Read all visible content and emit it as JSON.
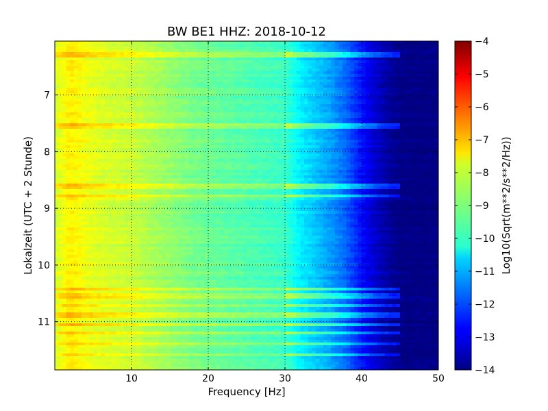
{
  "chart_data": {
    "type": "heatmap",
    "title": "BW BE1 HHZ: 2018-10-12",
    "xlabel": "Frequency [Hz]",
    "ylabel": "Lokalzeit (UTC + 2 Stunde)",
    "xlim": [
      0,
      50
    ],
    "ylim": [
      11.85,
      6.05
    ],
    "x_ticks": [
      10,
      20,
      30,
      40,
      50
    ],
    "y_ticks": [
      7,
      8,
      9,
      10,
      11
    ],
    "grid": true,
    "colormap": "jet",
    "colorbar": {
      "label": "Log10(Sqrt(m**2/s**2/Hz))",
      "min": -14,
      "max": -4,
      "ticks": [
        -4,
        -5,
        -6,
        -7,
        -8,
        -9,
        -10,
        -11,
        -12,
        -13,
        -14
      ]
    },
    "spectrum_profile": {
      "frequency_hz": [
        0,
        2,
        4,
        6,
        8,
        10,
        12,
        14,
        16,
        18,
        20,
        22,
        24,
        26,
        28,
        30,
        31,
        32,
        33,
        34,
        35,
        36,
        37,
        38,
        39,
        40,
        41,
        42,
        43,
        44,
        45,
        46,
        50
      ],
      "level": [
        -8.2,
        -7.6,
        -7.9,
        -8.1,
        -8.2,
        -8.3,
        -8.5,
        -8.7,
        -8.9,
        -9.1,
        -9.2,
        -9.3,
        -9.4,
        -9.5,
        -9.6,
        -9.7,
        -10.0,
        -10.4,
        -10.6,
        -10.8,
        -11.0,
        -11.2,
        -11.5,
        -11.8,
        -12.2,
        -12.6,
        -13.0,
        -13.3,
        -13.6,
        -13.8,
        -13.95,
        -14.0,
        -14.0
      ]
    },
    "bright_time_bands_h": [
      6.3,
      7.55,
      8.6,
      8.78,
      10.42,
      10.55,
      10.72,
      10.88,
      11.05,
      11.2,
      11.4,
      11.58
    ]
  }
}
